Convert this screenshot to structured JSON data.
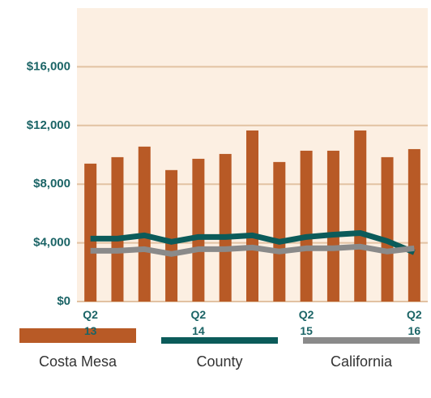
{
  "chart_data": {
    "type": "bar",
    "categories": [
      "Q2\n13",
      null,
      null,
      null,
      "Q2\n14",
      null,
      null,
      null,
      "Q2\n15",
      null,
      null,
      null,
      "Q2\n16"
    ],
    "series": [
      {
        "name": "Costa Mesa",
        "type": "bar",
        "color": "#b85a26",
        "values": [
          9400,
          9840,
          10560,
          8960,
          9730,
          10060,
          11660,
          9510,
          10280,
          10280,
          11660,
          9840,
          10390
        ]
      },
      {
        "name": "County",
        "type": "line",
        "color": "#0b5b5a",
        "values": [
          4290,
          4290,
          4510,
          4070,
          4400,
          4400,
          4510,
          4070,
          4400,
          4560,
          4670,
          4120,
          3350
        ]
      },
      {
        "name": "California",
        "type": "line",
        "color": "#8a8a8a",
        "values": [
          3460,
          3460,
          3570,
          3240,
          3570,
          3570,
          3680,
          3410,
          3630,
          3630,
          3740,
          3410,
          3630
        ]
      }
    ],
    "ylim": [
      0,
      20000
    ],
    "yticks": [
      {
        "value": 0,
        "label": "$0"
      },
      {
        "value": 4000,
        "label": "$4,000"
      },
      {
        "value": 8000,
        "label": "$8,000"
      },
      {
        "value": 12000,
        "label": "$12,000"
      },
      {
        "value": 16000,
        "label": "$16,000"
      }
    ],
    "grid": true,
    "plot_background": "#fcefe2",
    "grid_color": "#e2c2a2"
  }
}
